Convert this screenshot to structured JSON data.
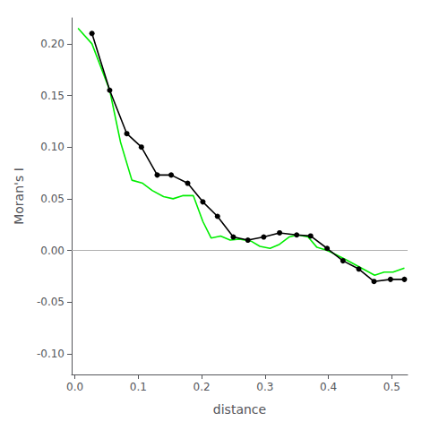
{
  "chart_data": {
    "type": "line",
    "xlabel": "distance",
    "ylabel": "Moran's I",
    "xlim": [
      -0.005,
      0.525
    ],
    "ylim": [
      -0.12,
      0.225
    ],
    "xticks": [
      {
        "value": 0.0,
        "label": "0.0"
      },
      0.1,
      0.2,
      0.3,
      0.4,
      0.5
    ],
    "yticks": [
      {
        "value": -0.1,
        "label": "-0.10"
      },
      -0.05,
      {
        "value": 0.0,
        "label": "0.00"
      },
      0.05,
      {
        "value": 0.1,
        "label": "0.10"
      },
      0.15,
      {
        "value": 0.2,
        "label": "0.20"
      }
    ],
    "grid": false,
    "hline": {
      "y": 0.0,
      "color": "#b0b0b0"
    },
    "series": [
      {
        "color": "#00ee00",
        "x": [
          0.005,
          0.027,
          0.055,
          0.072,
          0.09,
          0.107,
          0.122,
          0.14,
          0.155,
          0.17,
          0.187,
          0.202,
          0.215,
          0.23,
          0.245,
          0.26,
          0.278,
          0.292,
          0.308,
          0.323,
          0.338,
          0.352,
          0.368,
          0.382,
          0.398,
          0.412,
          0.428,
          0.443,
          0.458,
          0.473,
          0.488,
          0.502,
          0.52
        ],
        "values": [
          0.215,
          0.2,
          0.155,
          0.105,
          0.068,
          0.065,
          0.058,
          0.052,
          0.05,
          0.053,
          0.053,
          0.028,
          0.012,
          0.014,
          0.01,
          0.011,
          0.009,
          0.004,
          0.002,
          0.006,
          0.013,
          0.015,
          0.013,
          0.003,
          0.0,
          -0.004,
          -0.009,
          -0.014,
          -0.019,
          -0.024,
          -0.021,
          -0.021,
          -0.017
        ]
      },
      {
        "color": "#000000",
        "marker": "circle",
        "x": [
          0.027,
          0.055,
          0.082,
          0.105,
          0.13,
          0.152,
          0.178,
          0.202,
          0.225,
          0.25,
          0.273,
          0.298,
          0.323,
          0.35,
          0.372,
          0.398,
          0.423,
          0.448,
          0.472,
          0.498,
          0.52
        ],
        "values": [
          0.21,
          0.155,
          0.113,
          0.1,
          0.073,
          0.073,
          0.065,
          0.047,
          0.033,
          0.013,
          0.01,
          0.013,
          0.017,
          0.015,
          0.014,
          0.002,
          -0.01,
          -0.018,
          -0.03,
          -0.028,
          -0.028
        ]
      }
    ]
  }
}
